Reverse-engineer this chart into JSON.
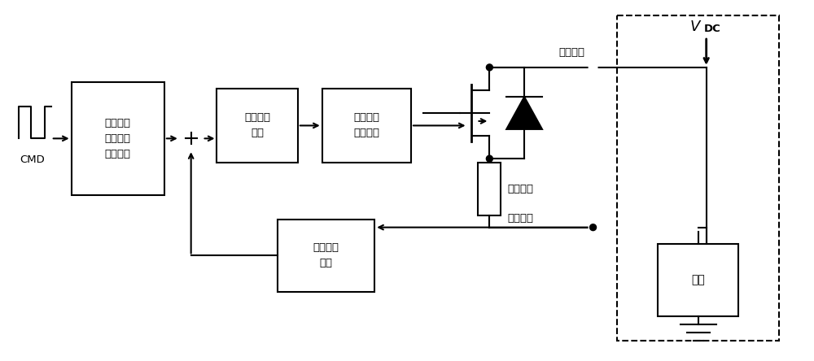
{
  "bg_color": "#ffffff",
  "lc": "#000000",
  "lw": 1.5,
  "figsize": [
    10.0,
    4.44
  ],
  "dpi": 100,
  "box1_label": "斜坡电压\n基准信号\n产生电路",
  "box2_label": "误差调节\n电路",
  "box3_label": "驱动功率\n放大电路",
  "box4_label": "电压反馈\n电路",
  "cmd_label": "CMD",
  "power_in_label": "功率输入",
  "power_out_label": "功率输出",
  "detect_r_label": "检测电阻",
  "load_label": "负载",
  "vdc_v": "V",
  "vdc_sub": "DC",
  "font_cn": "SimHei",
  "font_size": 10
}
